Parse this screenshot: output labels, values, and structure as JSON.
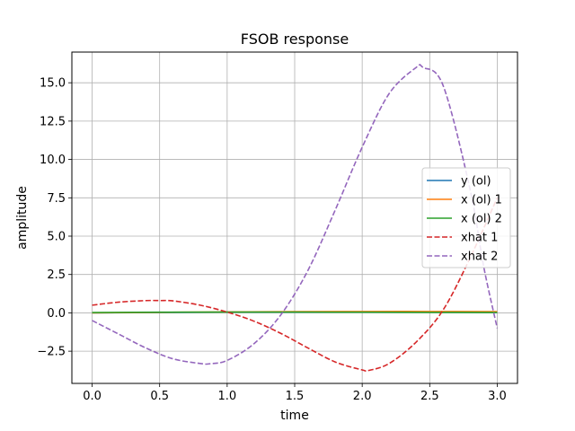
{
  "chart_data": {
    "type": "line",
    "title": "FSOB response",
    "xlabel": "time",
    "ylabel": "amplitude",
    "xlim": [
      -0.15,
      3.15
    ],
    "ylim": [
      -4.6,
      17.0
    ],
    "xticks": [
      0.0,
      0.5,
      1.0,
      1.5,
      2.0,
      2.5,
      3.0
    ],
    "xtick_labels": [
      "0.0",
      "0.5",
      "1.0",
      "1.5",
      "2.0",
      "2.5",
      "3.0"
    ],
    "yticks": [
      -2.5,
      0.0,
      2.5,
      5.0,
      7.5,
      10.0,
      12.5,
      15.0
    ],
    "ytick_labels": [
      "−2.5",
      "0.0",
      "2.5",
      "5.0",
      "7.5",
      "10.0",
      "12.5",
      "15.0"
    ],
    "grid": true,
    "legend_position": "center-right",
    "series": [
      {
        "name": "y (ol)",
        "color": "#1f77b4",
        "style": "solid",
        "x": [
          0,
          0.5,
          1.0,
          1.5,
          2.0,
          2.5,
          3.0
        ],
        "y": [
          0.0,
          0.02,
          0.04,
          0.05,
          0.05,
          0.04,
          0.03
        ]
      },
      {
        "name": "x (ol) 1",
        "color": "#ff7f0e",
        "style": "solid",
        "x": [
          0,
          0.5,
          1.0,
          1.5,
          2.0,
          2.5,
          3.0
        ],
        "y": [
          0.0,
          0.03,
          0.06,
          0.08,
          0.09,
          0.09,
          0.08
        ]
      },
      {
        "name": "x (ol) 2",
        "color": "#2ca02c",
        "style": "solid",
        "x": [
          0,
          0.5,
          1.0,
          1.5,
          2.0,
          2.5,
          3.0
        ],
        "y": [
          0.02,
          0.04,
          0.05,
          0.05,
          0.04,
          0.03,
          0.02
        ]
      },
      {
        "name": "xhat 1",
        "color": "#d62728",
        "style": "dashed",
        "x": [
          0,
          0.2,
          0.4,
          0.5,
          0.6,
          0.8,
          1.0,
          1.2,
          1.4,
          1.6,
          1.8,
          2.0,
          2.05,
          2.2,
          2.4,
          2.6,
          2.8,
          3.0
        ],
        "y": [
          0.5,
          0.7,
          0.8,
          0.8,
          0.78,
          0.5,
          0.05,
          -0.55,
          -1.35,
          -2.3,
          -3.2,
          -3.72,
          -3.75,
          -3.3,
          -1.9,
          0.2,
          3.6,
          7.5
        ]
      },
      {
        "name": "xhat 2",
        "color": "#9467bd",
        "style": "dashed",
        "x": [
          0,
          0.2,
          0.4,
          0.6,
          0.8,
          0.87,
          1.0,
          1.2,
          1.4,
          1.6,
          1.8,
          2.0,
          2.2,
          2.4,
          2.45,
          2.6,
          2.8,
          2.9,
          3.0
        ],
        "y": [
          -0.5,
          -1.4,
          -2.3,
          -3.0,
          -3.3,
          -3.32,
          -3.1,
          -2.0,
          -0.1,
          2.8,
          6.7,
          10.8,
          14.3,
          16.0,
          16.0,
          14.8,
          8.0,
          3.0,
          -1.0
        ]
      }
    ]
  }
}
